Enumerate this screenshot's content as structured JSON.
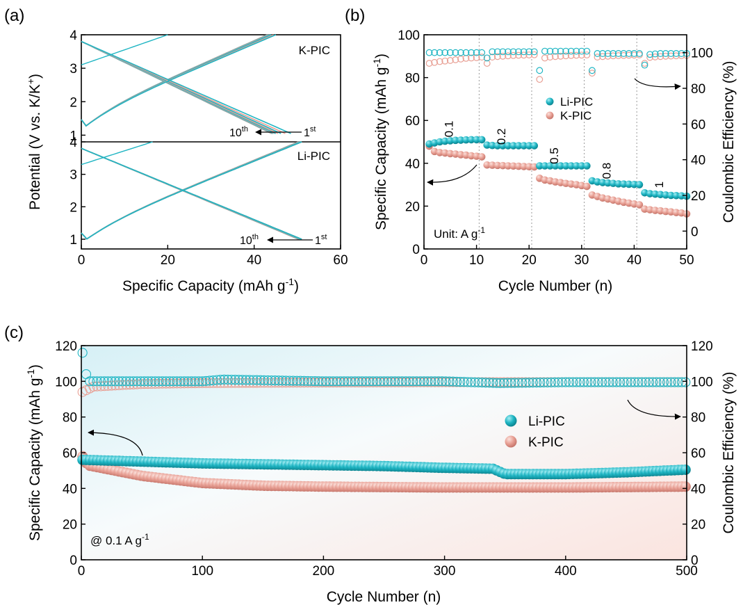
{
  "colors": {
    "li": "#1fb5c3",
    "k": "#e8a095"
  },
  "panel_labels": {
    "a": "(a)",
    "b": "(b)",
    "c": "(c)"
  },
  "chart_data": [
    {
      "id": "a",
      "type": "line",
      "ylabel": "Potential (V vs. K/K",
      "ylabel_sup": "+",
      "ylabel_tail": ")",
      "xlabel": "Specific Capacity (mAh g",
      "xlabel_sup": "-1",
      "xlabel_tail": ")",
      "xlim": [
        0,
        60
      ],
      "xticks": [
        "0",
        "20",
        "40",
        "60"
      ],
      "subplots": [
        {
          "name": "K-PIC",
          "ylim": [
            0.8,
            4
          ],
          "yticks": [
            "1",
            "2",
            "3",
            "4"
          ],
          "charge_end_capacity": [
            45,
            44.5,
            44,
            44,
            43.8,
            43.6,
            43.4,
            43.2,
            43.1,
            43
          ],
          "discharge_end_capacity": [
            48.5,
            47.2,
            46.2,
            45.5,
            45,
            44.7,
            44.4,
            44.2,
            44.1,
            44
          ],
          "first_cycle_start_potential": 3.1,
          "first_charge_capacity": 20,
          "ann_10": "10",
          "ann_10_sup": "th",
          "ann_1": "1",
          "ann_1_sup": "st"
        },
        {
          "name": "Li-PIC",
          "ylim": [
            0.7,
            4
          ],
          "yticks": [
            "1",
            "2",
            "3",
            "4"
          ],
          "charge_end_capacity": [
            51,
            51,
            51,
            51,
            51,
            51,
            50.8,
            50.6,
            50.4,
            50.2
          ],
          "discharge_end_capacity": [
            51,
            51,
            51,
            51,
            51,
            51,
            50.8,
            50.6,
            50.4,
            50.2
          ],
          "first_cycle_start_potential": 3.3,
          "first_charge_capacity": 16.5,
          "ann_10": "10",
          "ann_10_sup": "th",
          "ann_1": "1",
          "ann_1_sup": "st"
        }
      ]
    },
    {
      "id": "b",
      "type": "scatter",
      "xlabel": "Cycle Number (n)",
      "ylabel": "Specific Capacity (mAh g",
      "ylabel_sup": "-1",
      "ylabel_tail": ")",
      "y2label": "Coulombic Efficiency (%)",
      "xlim": [
        0,
        50
      ],
      "ylim": [
        0,
        100
      ],
      "y2lim": [
        -10,
        110
      ],
      "xticks": [
        "0",
        "10",
        "20",
        "30",
        "40",
        "50"
      ],
      "yticks": [
        "0",
        "20",
        "40",
        "60",
        "80",
        "100"
      ],
      "y2ticks": [
        "0",
        "20",
        "40",
        "60",
        "80",
        "100"
      ],
      "rate_labels": [
        "0.1",
        "0.2",
        "0.5",
        "0.8",
        "1"
      ],
      "unit_note": "Unit: A g",
      "unit_note_sup": "-1",
      "legend": [
        "Li-PIC",
        "K-PIC"
      ],
      "x": [
        1,
        2,
        3,
        4,
        5,
        6,
        7,
        8,
        9,
        10,
        11,
        12,
        13,
        14,
        15,
        16,
        17,
        18,
        19,
        20,
        21,
        22,
        23,
        24,
        25,
        26,
        27,
        28,
        29,
        30,
        31,
        32,
        33,
        34,
        35,
        36,
        37,
        38,
        39,
        40,
        41,
        42,
        43,
        44,
        45,
        46,
        47,
        48,
        49,
        50
      ],
      "series": [
        {
          "name": "Li-PIC",
          "capacity": [
            49,
            49.5,
            50,
            50.3,
            50.5,
            50.7,
            50.8,
            50.9,
            51,
            51,
            51,
            48.5,
            48.3,
            48.2,
            48.2,
            48.2,
            48.2,
            48.2,
            48.2,
            48.2,
            48.2,
            38.8,
            38.8,
            38.8,
            38.8,
            38.8,
            38.8,
            38.8,
            38.8,
            38.8,
            38.8,
            31.8,
            31.3,
            31,
            30.8,
            30.6,
            30.4,
            30.3,
            30.2,
            30.1,
            30,
            26.2,
            25.8,
            25.6,
            25.4,
            25.2,
            25,
            24.9,
            24.8,
            24.6
          ],
          "ce": [
            100,
            100,
            100,
            100,
            100,
            100,
            100,
            100,
            100,
            100,
            100,
            97,
            100.5,
            100.5,
            100.5,
            100.5,
            100.5,
            100.5,
            100.5,
            100.5,
            100.5,
            90,
            100.8,
            100.8,
            100.8,
            100.8,
            100.8,
            100.8,
            100.8,
            100.8,
            100.8,
            90,
            99.5,
            99.5,
            99.5,
            99.5,
            99.5,
            99.5,
            99.5,
            99.5,
            99.5,
            93,
            99,
            99.3,
            99.5,
            99.5,
            99.5,
            99.5,
            99.5,
            99.5
          ]
        },
        {
          "name": "K-PIC",
          "capacity": [
            48,
            45.5,
            45,
            44.8,
            44.5,
            44.3,
            44,
            43.8,
            43.5,
            43.3,
            43,
            39.2,
            39.1,
            39,
            38.9,
            38.8,
            38.7,
            38.6,
            38.5,
            38.4,
            38.3,
            33,
            32.2,
            31.8,
            31.3,
            31,
            30.6,
            30.3,
            30,
            29.6,
            29.2,
            25.2,
            24.5,
            23.8,
            23.3,
            22.8,
            22.3,
            21.8,
            21.4,
            21,
            20.6,
            18.6,
            18.3,
            18,
            17.8,
            17.5,
            17.3,
            17,
            16.8,
            16.4
          ],
          "ce": [
            94,
            94.5,
            95,
            95.3,
            95.6,
            96,
            96.4,
            96.8,
            97,
            97.2,
            97.5,
            94,
            97.5,
            97.8,
            98,
            98.2,
            98.4,
            98.5,
            98.6,
            98.7,
            98.8,
            85,
            97,
            97.5,
            97.8,
            98,
            98.2,
            98.4,
            98.5,
            98.6,
            98.7,
            88.5,
            97.5,
            97.8,
            98,
            98.2,
            98.3,
            98.4,
            98.5,
            98.6,
            98.7,
            94,
            97.3,
            97.6,
            97.8,
            98,
            98.1,
            98.2,
            98.3,
            98.4
          ]
        }
      ]
    },
    {
      "id": "c",
      "type": "scatter",
      "xlabel": "Cycle Number (n)",
      "ylabel": "Specific Capacity (mAh g",
      "ylabel_sup": "-1",
      "ylabel_tail": ")",
      "y2label": "Coulombic Efficiency (%)",
      "xlim": [
        0,
        500
      ],
      "ylim": [
        0,
        120
      ],
      "y2lim": [
        0,
        120
      ],
      "xticks": [
        "0",
        "100",
        "200",
        "300",
        "400",
        "500"
      ],
      "yticks": [
        "0",
        "20",
        "40",
        "60",
        "80",
        "100",
        "120"
      ],
      "y2ticks": [
        "0",
        "20",
        "40",
        "60",
        "80",
        "100",
        "120"
      ],
      "rate_note": "@ 0.1 A g",
      "rate_note_sup": "-1",
      "legend": [
        "Li-PIC",
        "K-PIC"
      ],
      "series": [
        {
          "name": "Li-PIC",
          "capacity_points": [
            [
              1,
              56
            ],
            [
              50,
              55
            ],
            [
              100,
              54
            ],
            [
              150,
              53.5
            ],
            [
              200,
              53
            ],
            [
              250,
              52.5
            ],
            [
              300,
              51.5
            ],
            [
              340,
              51
            ],
            [
              350,
              48
            ],
            [
              400,
              48
            ],
            [
              450,
              49
            ],
            [
              500,
              50.5
            ]
          ],
          "ce_points": [
            [
              1,
              116
            ],
            [
              5,
              100
            ],
            [
              100,
              100
            ],
            [
              117,
              101
            ],
            [
              200,
              100
            ],
            [
              300,
              100
            ],
            [
              345,
              99
            ],
            [
              400,
              99.5
            ],
            [
              500,
              99.5
            ]
          ]
        },
        {
          "name": "K-PIC",
          "capacity_points": [
            [
              1,
              58
            ],
            [
              5,
              53
            ],
            [
              50,
              47
            ],
            [
              100,
              43
            ],
            [
              150,
              41.5
            ],
            [
              200,
              41
            ],
            [
              300,
              40.5
            ],
            [
              400,
              40.5
            ],
            [
              500,
              41
            ]
          ],
          "ce_points": [
            [
              1,
              94
            ],
            [
              10,
              97
            ],
            [
              50,
              98.5
            ],
            [
              100,
              99
            ],
            [
              200,
              99.3
            ],
            [
              300,
              99.5
            ],
            [
              500,
              99.5
            ]
          ]
        }
      ]
    }
  ]
}
